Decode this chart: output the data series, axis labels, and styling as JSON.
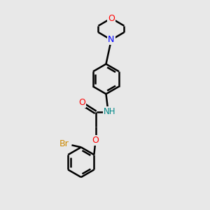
{
  "background_color": "#e8e8e8",
  "line_color": "#000000",
  "bond_width": 1.8,
  "atom_colors": {
    "O": "#ff0000",
    "N": "#0000ff",
    "Br": "#cc8800",
    "NH": "#008888",
    "C": "#000000"
  },
  "figsize": [
    3.0,
    3.0
  ],
  "dpi": 100
}
